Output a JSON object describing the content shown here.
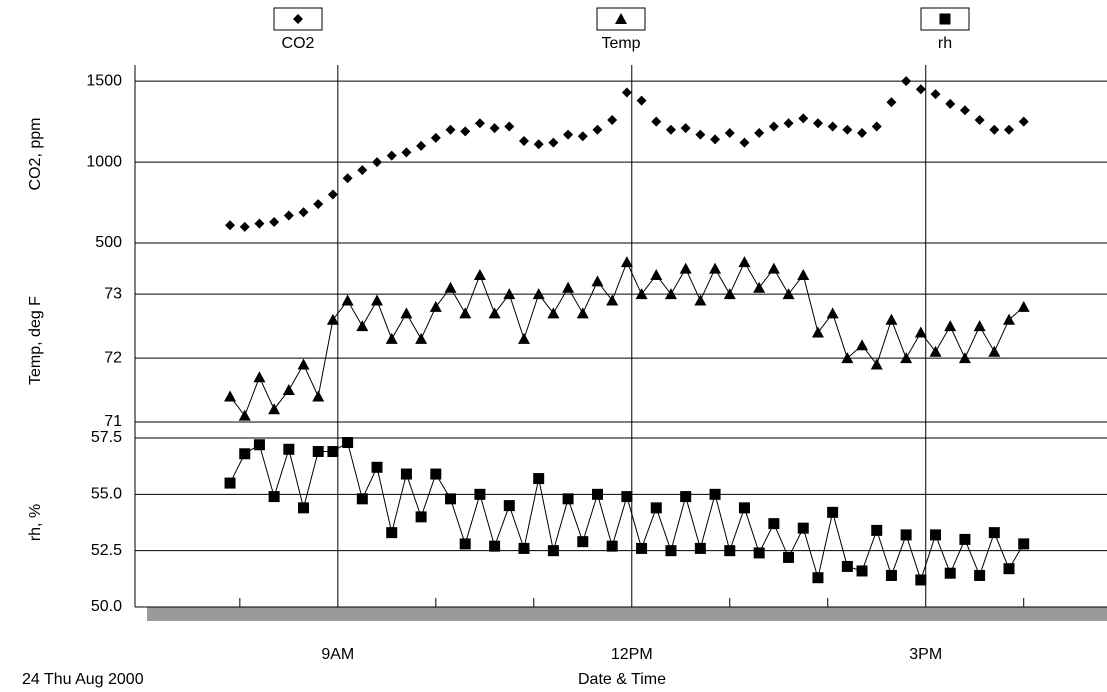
{
  "chart_data": [
    {
      "type": "line",
      "ylabel": "CO2, ppm",
      "x": [
        7.9,
        8.05,
        8.2,
        8.35,
        8.5,
        8.65,
        8.8,
        8.95,
        9.1,
        9.25,
        9.4,
        9.55,
        9.7,
        9.85,
        10,
        10.15,
        10.3,
        10.45,
        10.6,
        10.75,
        10.9,
        11.05,
        11.2,
        11.35,
        11.5,
        11.65,
        11.8,
        11.95,
        12.1,
        12.25,
        12.4,
        12.55,
        12.7,
        12.85,
        13,
        13.15,
        13.3,
        13.45,
        13.6,
        13.75,
        13.9,
        14.05,
        14.2,
        14.35,
        14.5,
        14.65,
        14.8,
        14.95,
        15.1,
        15.25,
        15.4,
        15.55,
        15.7,
        15.85,
        16
      ],
      "series": [
        {
          "name": "CO2",
          "color": "#000000",
          "marker": "diamond",
          "line": false,
          "values": [
            610,
            600,
            620,
            630,
            670,
            690,
            740,
            800,
            900,
            950,
            1000,
            1040,
            1060,
            1100,
            1150,
            1200,
            1190,
            1240,
            1210,
            1220,
            1130,
            1110,
            1120,
            1170,
            1160,
            1200,
            1260,
            1430,
            1380,
            1250,
            1200,
            1210,
            1170,
            1140,
            1180,
            1120,
            1180,
            1220,
            1240,
            1270,
            1240,
            1220,
            1200,
            1180,
            1220,
            1370,
            1500,
            1450,
            1420,
            1360,
            1320,
            1260,
            1200,
            1200,
            1250
          ]
        }
      ],
      "ylim": [
        500,
        1600
      ],
      "yticks": [
        500,
        1000,
        1500
      ],
      "grid": true
    },
    {
      "type": "line",
      "ylabel": "Temp, deg F",
      "x": [
        7.9,
        8.05,
        8.2,
        8.35,
        8.5,
        8.65,
        8.8,
        8.95,
        9.1,
        9.25,
        9.4,
        9.55,
        9.7,
        9.85,
        10,
        10.15,
        10.3,
        10.45,
        10.6,
        10.75,
        10.9,
        11.05,
        11.2,
        11.35,
        11.5,
        11.65,
        11.8,
        11.95,
        12.1,
        12.25,
        12.4,
        12.55,
        12.7,
        12.85,
        13,
        13.15,
        13.3,
        13.45,
        13.6,
        13.75,
        13.9,
        14.05,
        14.2,
        14.35,
        14.5,
        14.65,
        14.8,
        14.95,
        15.1,
        15.25,
        15.4,
        15.55,
        15.7,
        15.85,
        16
      ],
      "series": [
        {
          "name": "Temp",
          "color": "#000000",
          "marker": "triangle",
          "line": true,
          "values": [
            71.4,
            71.1,
            71.7,
            71.2,
            71.5,
            71.9,
            71.4,
            72.6,
            72.9,
            72.5,
            72.9,
            72.3,
            72.7,
            72.3,
            72.8,
            73.1,
            72.7,
            73.3,
            72.7,
            73.0,
            72.3,
            73.0,
            72.7,
            73.1,
            72.7,
            73.2,
            72.9,
            73.5,
            73.0,
            73.3,
            73.0,
            73.4,
            72.9,
            73.4,
            73.0,
            73.5,
            73.1,
            73.4,
            73.0,
            73.3,
            72.4,
            72.7,
            72.0,
            72.2,
            71.9,
            72.6,
            72.0,
            72.4,
            72.1,
            72.5,
            72.0,
            72.5,
            72.1,
            72.6,
            72.8
          ]
        }
      ],
      "ylim": [
        70.75,
        73.8
      ],
      "yticks": [
        71,
        72,
        73
      ],
      "grid": true
    },
    {
      "type": "line",
      "ylabel": "rh, %",
      "x": [
        7.9,
        8.05,
        8.2,
        8.35,
        8.5,
        8.65,
        8.8,
        8.95,
        9.1,
        9.25,
        9.4,
        9.55,
        9.7,
        9.85,
        10,
        10.15,
        10.3,
        10.45,
        10.6,
        10.75,
        10.9,
        11.05,
        11.2,
        11.35,
        11.5,
        11.65,
        11.8,
        11.95,
        12.1,
        12.25,
        12.4,
        12.55,
        12.7,
        12.85,
        13,
        13.15,
        13.3,
        13.45,
        13.6,
        13.75,
        13.9,
        14.05,
        14.2,
        14.35,
        14.5,
        14.65,
        14.8,
        14.95,
        15.1,
        15.25,
        15.4,
        15.55,
        15.7,
        15.85,
        16
      ],
      "series": [
        {
          "name": "rh",
          "color": "#000000",
          "marker": "square",
          "line": true,
          "values": [
            55.5,
            56.8,
            57.2,
            54.9,
            57.0,
            54.4,
            56.9,
            56.9,
            57.3,
            54.8,
            56.2,
            53.3,
            55.9,
            54.0,
            55.9,
            54.8,
            52.8,
            55.0,
            52.7,
            54.5,
            52.6,
            55.7,
            52.5,
            54.8,
            52.9,
            55.0,
            52.7,
            54.9,
            52.6,
            54.4,
            52.5,
            54.9,
            52.6,
            55.0,
            52.5,
            54.4,
            52.4,
            53.7,
            52.2,
            53.5,
            51.3,
            54.2,
            51.8,
            51.6,
            53.4,
            51.4,
            53.2,
            51.2,
            53.2,
            51.5,
            53.0,
            51.4,
            53.3,
            51.7,
            52.8
          ]
        }
      ],
      "ylim": [
        50,
        57.5
      ],
      "yticks": [
        {
          "value": 50,
          "label": "50.0"
        },
        52.5,
        {
          "value": 55,
          "label": "55.0"
        },
        57.5
      ],
      "grid": true,
      "xlim": [
        6.93,
        16.85
      ],
      "xticks": [
        {
          "value": 9,
          "label": "9AM"
        },
        {
          "value": 12,
          "label": "12PM"
        },
        {
          "value": 15,
          "label": "3PM"
        }
      ],
      "xminorticks": [
        8,
        10,
        11,
        13,
        14,
        16
      ],
      "xlabel": "Date & Time",
      "annotation": "24 Thu Aug 2000"
    }
  ]
}
